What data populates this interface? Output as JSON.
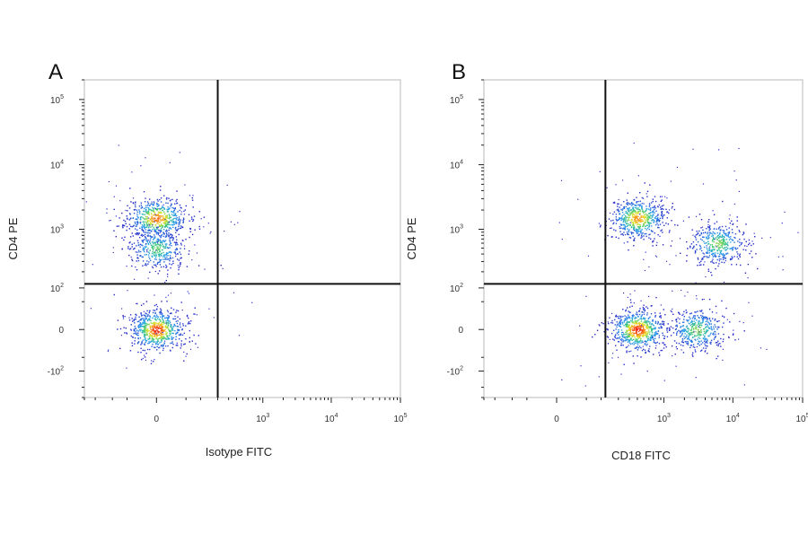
{
  "chart_data": [
    {
      "type": "scatter",
      "subtype": "flow-cytometry-density-dot-plot",
      "panel_label": "A",
      "xlabel": "Isotype FITC",
      "ylabel": "CD4 PE",
      "x_scale": "biexponential",
      "y_scale": "biexponential",
      "xlim": [
        -300,
        100000
      ],
      "ylim": [
        -300,
        200000
      ],
      "x_ticks": [
        {
          "value": 0,
          "base": "0",
          "exp": ""
        },
        {
          "value": 1000,
          "base": "10",
          "exp": "3"
        },
        {
          "value": 10000,
          "base": "10",
          "exp": "4"
        },
        {
          "value": 100000,
          "base": "10",
          "exp": "5"
        }
      ],
      "y_ticks": [
        {
          "value": -100,
          "base": "-10",
          "exp": "2"
        },
        {
          "value": 0,
          "base": "0",
          "exp": ""
        },
        {
          "value": 100,
          "base": "10",
          "exp": "2"
        },
        {
          "value": 1000,
          "base": "10",
          "exp": "3"
        },
        {
          "value": 10000,
          "base": "10",
          "exp": "4"
        },
        {
          "value": 100000,
          "base": "10",
          "exp": "5"
        }
      ],
      "quadrant_gate": {
        "x": 200,
        "y": 120
      },
      "populations": [
        {
          "x": 0,
          "y": 1500,
          "relative_density": 0.9
        },
        {
          "x": 0,
          "y": 500,
          "relative_density": 0.55
        },
        {
          "x": 0,
          "y": 0,
          "relative_density": 1.0
        }
      ],
      "grid": false,
      "legend": "none"
    },
    {
      "type": "scatter",
      "subtype": "flow-cytometry-density-dot-plot",
      "panel_label": "B",
      "xlabel": "CD18 FITC",
      "ylabel": "CD4 PE",
      "x_scale": "biexponential",
      "y_scale": "biexponential",
      "xlim": [
        -300,
        100000
      ],
      "ylim": [
        -300,
        200000
      ],
      "x_ticks": [
        {
          "value": 0,
          "base": "0",
          "exp": ""
        },
        {
          "value": 1000,
          "base": "10",
          "exp": "3"
        },
        {
          "value": 10000,
          "base": "10",
          "exp": "4"
        },
        {
          "value": 100000,
          "base": "10",
          "exp": "5"
        }
      ],
      "y_ticks": [
        {
          "value": -100,
          "base": "-10",
          "exp": "2"
        },
        {
          "value": 0,
          "base": "0",
          "exp": ""
        },
        {
          "value": 100,
          "base": "10",
          "exp": "2"
        },
        {
          "value": 1000,
          "base": "10",
          "exp": "3"
        },
        {
          "value": 10000,
          "base": "10",
          "exp": "4"
        },
        {
          "value": 100000,
          "base": "10",
          "exp": "5"
        }
      ],
      "quadrant_gate": {
        "x": 120,
        "y": 120
      },
      "populations": [
        {
          "x": 400,
          "y": 1500,
          "relative_density": 0.85
        },
        {
          "x": 6000,
          "y": 600,
          "relative_density": 0.6
        },
        {
          "x": 400,
          "y": 0,
          "relative_density": 1.0
        },
        {
          "x": 3000,
          "y": 0,
          "relative_density": 0.6
        }
      ],
      "grid": false,
      "legend": "none"
    }
  ]
}
